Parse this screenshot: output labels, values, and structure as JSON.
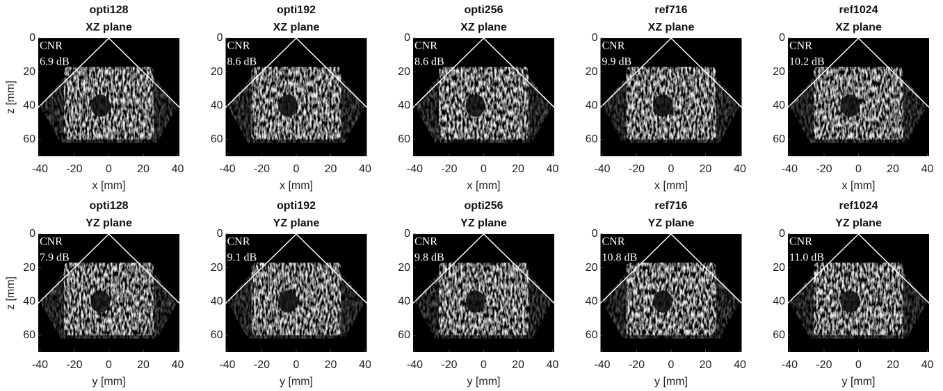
{
  "chart_data": [
    {
      "type": "image",
      "title": "opti128",
      "subtitle": "XZ plane",
      "annotations": [
        "CNR",
        "6.9 dB"
      ],
      "xlabel": "x [mm]",
      "ylabel": "z [mm]",
      "xlim": [
        -41,
        41
      ],
      "ylim": [
        0,
        70
      ],
      "y_reversed": true,
      "xticks": [
        -40,
        -20,
        0,
        20,
        40
      ],
      "yticks": [
        0,
        20,
        40,
        60
      ]
    },
    {
      "type": "image",
      "title": "opti192",
      "subtitle": "XZ plane",
      "annotations": [
        "CNR",
        "8.6 dB"
      ],
      "xlabel": "x [mm]",
      "xlim": [
        -41,
        41
      ],
      "ylim": [
        0,
        70
      ],
      "y_reversed": true,
      "xticks": [
        -40,
        -20,
        0,
        20,
        40
      ],
      "yticks": [
        0,
        20,
        40,
        60
      ]
    },
    {
      "type": "image",
      "title": "opti256",
      "subtitle": "XZ plane",
      "annotations": [
        "CNR",
        "8.6 dB"
      ],
      "xlabel": "x [mm]",
      "xlim": [
        -41,
        41
      ],
      "ylim": [
        0,
        70
      ],
      "y_reversed": true,
      "xticks": [
        -40,
        -20,
        0,
        20,
        40
      ],
      "yticks": [
        0,
        20,
        40,
        60
      ]
    },
    {
      "type": "image",
      "title": "ref716",
      "subtitle": "XZ plane",
      "annotations": [
        "CNR",
        "9.9 dB"
      ],
      "xlabel": "x [mm]",
      "xlim": [
        -41,
        41
      ],
      "ylim": [
        0,
        70
      ],
      "y_reversed": true,
      "xticks": [
        -40,
        -20,
        0,
        20,
        40
      ],
      "yticks": [
        0,
        20,
        40,
        60
      ]
    },
    {
      "type": "image",
      "title": "ref1024",
      "subtitle": "XZ plane",
      "annotations": [
        "CNR",
        "10.2 dB"
      ],
      "xlabel": "x [mm]",
      "xlim": [
        -41,
        41
      ],
      "ylim": [
        0,
        70
      ],
      "y_reversed": true,
      "xticks": [
        -40,
        -20,
        0,
        20,
        40
      ],
      "yticks": [
        0,
        20,
        40,
        60
      ]
    },
    {
      "type": "image",
      "title": "opti128",
      "subtitle": "YZ plane",
      "annotations": [
        "CNR",
        "7.9 dB"
      ],
      "xlabel": "y [mm]",
      "ylabel": "z [mm]",
      "xlim": [
        -41,
        41
      ],
      "ylim": [
        0,
        70
      ],
      "y_reversed": true,
      "xticks": [
        -40,
        -20,
        0,
        20,
        40
      ],
      "yticks": [
        0,
        20,
        40,
        60
      ]
    },
    {
      "type": "image",
      "title": "opti192",
      "subtitle": "YZ plane",
      "annotations": [
        "CNR",
        "9.1 dB"
      ],
      "xlabel": "y [mm]",
      "xlim": [
        -41,
        41
      ],
      "ylim": [
        0,
        70
      ],
      "y_reversed": true,
      "xticks": [
        -40,
        -20,
        0,
        20,
        40
      ],
      "yticks": [
        0,
        20,
        40,
        60
      ]
    },
    {
      "type": "image",
      "title": "opti256",
      "subtitle": "YZ plane",
      "annotations": [
        "CNR",
        "9.8 dB"
      ],
      "xlabel": "y [mm]",
      "xlim": [
        -41,
        41
      ],
      "ylim": [
        0,
        70
      ],
      "y_reversed": true,
      "xticks": [
        -40,
        -20,
        0,
        20,
        40
      ],
      "yticks": [
        0,
        20,
        40,
        60
      ]
    },
    {
      "type": "image",
      "title": "ref716",
      "subtitle": "YZ plane",
      "annotations": [
        "CNR",
        "10.8 dB"
      ],
      "xlabel": "y [mm]",
      "xlim": [
        -41,
        41
      ],
      "ylim": [
        0,
        70
      ],
      "y_reversed": true,
      "xticks": [
        -40,
        -20,
        0,
        20,
        40
      ],
      "yticks": [
        0,
        20,
        40,
        60
      ]
    },
    {
      "type": "image",
      "title": "ref1024",
      "subtitle": "YZ plane",
      "annotations": [
        "CNR",
        "11.0 dB"
      ],
      "xlabel": "y [mm]",
      "xlim": [
        -41,
        41
      ],
      "ylim": [
        0,
        70
      ],
      "y_reversed": true,
      "xticks": [
        -40,
        -20,
        0,
        20,
        40
      ],
      "yticks": [
        0,
        20,
        40,
        60
      ]
    }
  ]
}
